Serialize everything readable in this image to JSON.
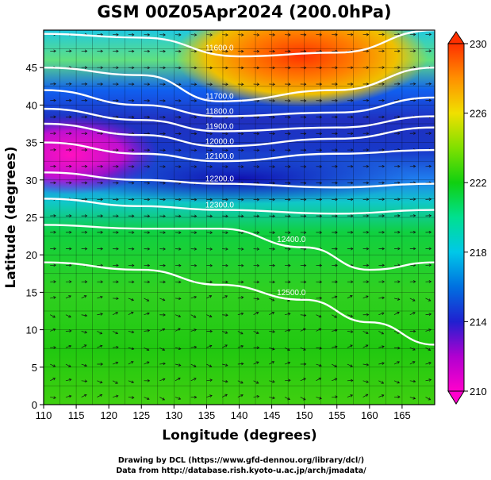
{
  "chart_data": {
    "type": "heatmap",
    "title": "GSM 00Z05Apr2024 (200.0hPa)",
    "xlabel": "Longitude (degrees)",
    "ylabel": "Latitude  (degrees)",
    "xlim": [
      110,
      170
    ],
    "ylim": [
      0,
      50
    ],
    "x_ticks": [
      110,
      115,
      120,
      125,
      130,
      135,
      140,
      145,
      150,
      155,
      160,
      165
    ],
    "y_ticks": [
      0,
      5,
      10,
      15,
      20,
      25,
      30,
      35,
      40,
      45
    ],
    "grid": true,
    "colorbar": {
      "range": [
        210,
        230
      ],
      "ticks": [
        210,
        214,
        218,
        222,
        226,
        230
      ],
      "colors": [
        "#ff00cc",
        "#b000d0",
        "#2020d0",
        "#0070e0",
        "#00c8e8",
        "#00e090",
        "#10d010",
        "#80e000",
        "#f0e000",
        "#ff9000",
        "#ff3000"
      ]
    },
    "contours": [
      {
        "label": "11600.0",
        "lon": [
          110,
          125,
          140,
          155,
          170
        ],
        "lat": [
          49.5,
          49.0,
          46.5,
          47.0,
          50.0
        ]
      },
      {
        "label": "11700.0",
        "lon": [
          110,
          125,
          137,
          155,
          170
        ],
        "lat": [
          45.0,
          44.0,
          40.5,
          42.0,
          45.0
        ]
      },
      {
        "label": "11800.0",
        "lon": [
          110,
          125,
          137,
          155,
          170
        ],
        "lat": [
          42.0,
          40.0,
          38.5,
          39.0,
          41.0
        ]
      },
      {
        "label": "11900.0",
        "lon": [
          110,
          125,
          137,
          155,
          170
        ],
        "lat": [
          39.5,
          38.0,
          36.5,
          37.0,
          38.5
        ]
      },
      {
        "label": "12000.0",
        "lon": [
          110,
          125,
          137,
          155,
          170
        ],
        "lat": [
          37.5,
          36.0,
          34.5,
          35.5,
          37.0
        ]
      },
      {
        "label": "12100.0",
        "lon": [
          110,
          125,
          137,
          155,
          170
        ],
        "lat": [
          35.0,
          33.5,
          32.5,
          33.5,
          34.0
        ]
      },
      {
        "label": "12200.0",
        "lon": [
          110,
          125,
          137,
          155,
          170
        ],
        "lat": [
          31.0,
          30.0,
          29.5,
          29.0,
          29.5
        ]
      },
      {
        "label": "12300.0",
        "lon": [
          110,
          125,
          137,
          155,
          170
        ],
        "lat": [
          27.5,
          26.5,
          26.0,
          25.5,
          26.0
        ]
      },
      {
        "label": "12400.0",
        "lon": [
          110,
          125,
          137,
          150,
          160,
          170
        ],
        "lat": [
          24.0,
          23.5,
          23.5,
          21.0,
          18.0,
          19.0
        ]
      },
      {
        "label": "12500.0",
        "lon": [
          110,
          125,
          137,
          150,
          160,
          170
        ],
        "lat": [
          19.0,
          18.0,
          16.0,
          14.0,
          11.0,
          8.0
        ]
      }
    ]
  },
  "credits": {
    "line1": "Drawing by DCL (https://www.gfd-dennou.org/library/dcl/)",
    "line2": "Data from http://database.rish.kyoto-u.ac.jp/arch/jmadata/"
  }
}
